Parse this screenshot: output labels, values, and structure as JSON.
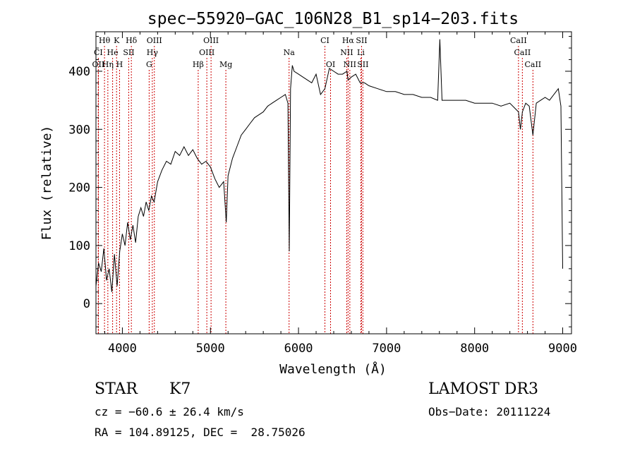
{
  "chart_data": {
    "type": "line",
    "title": "spec−55920−GAC_106N28_B1_sp14−203.fits",
    "xlabel": "Wavelength (Å)",
    "ylabel": "Flux (relative)",
    "xlim": [
      3700,
      9100
    ],
    "ylim": [
      -52,
      468
    ],
    "xticks": [
      "4000",
      "5000",
      "6000",
      "7000",
      "8000",
      "9000"
    ],
    "xtick_values": [
      4000,
      5000,
      6000,
      7000,
      8000,
      9000
    ],
    "yticks": [
      "0",
      "100",
      "200",
      "300",
      "400"
    ],
    "ytick_values": [
      0,
      100,
      200,
      300,
      400
    ],
    "grid": false,
    "series": [
      {
        "x": [
          3700,
          3730,
          3760,
          3790,
          3820,
          3850,
          3880,
          3910,
          3940,
          3970,
          4000,
          4030,
          4060,
          4090,
          4120,
          4150,
          4180,
          4210,
          4240,
          4270,
          4300,
          4330,
          4360,
          4400,
          4450,
          4500,
          4550,
          4600,
          4650,
          4700,
          4750,
          4800,
          4850,
          4900,
          4950,
          5000,
          5050,
          5100,
          5150,
          5180,
          5200,
          5250,
          5300,
          5350,
          5400,
          5450,
          5500,
          5550,
          5600,
          5650,
          5700,
          5750,
          5800,
          5850,
          5880,
          5895,
          5910,
          5930,
          5950,
          6000,
          6050,
          6100,
          6150,
          6200,
          6250,
          6300,
          6350,
          6400,
          6450,
          6500,
          6550,
          6563,
          6600,
          6650,
          6700,
          6750,
          6800,
          6900,
          7000,
          7100,
          7200,
          7300,
          7400,
          7500,
          7580,
          7605,
          7630,
          7700,
          7800,
          7900,
          8000,
          8100,
          8200,
          8300,
          8400,
          8498,
          8520,
          8542,
          8580,
          8620,
          8662,
          8700,
          8750,
          8800,
          8850,
          8900,
          8950,
          8980,
          9000
        ],
        "y": [
          30,
          70,
          55,
          95,
          40,
          60,
          20,
          85,
          30,
          90,
          120,
          100,
          140,
          110,
          135,
          105,
          150,
          165,
          150,
          175,
          160,
          185,
          175,
          210,
          230,
          245,
          240,
          262,
          255,
          270,
          255,
          265,
          250,
          240,
          245,
          235,
          215,
          200,
          210,
          140,
          220,
          250,
          270,
          290,
          300,
          310,
          320,
          325,
          330,
          340,
          345,
          350,
          355,
          360,
          345,
          90,
          370,
          410,
          400,
          395,
          390,
          385,
          380,
          395,
          360,
          370,
          405,
          400,
          395,
          395,
          400,
          385,
          390,
          395,
          380,
          380,
          375,
          370,
          365,
          365,
          360,
          360,
          355,
          355,
          350,
          455,
          350,
          350,
          350,
          350,
          345,
          345,
          345,
          340,
          345,
          330,
          300,
          330,
          345,
          340,
          290,
          345,
          350,
          355,
          350,
          360,
          370,
          340,
          60
        ]
      }
    ],
    "lines": [
      {
        "label": "Hθ",
        "x": 3797,
        "row": 0
      },
      {
        "label": "K",
        "x": 3934,
        "row": 0
      },
      {
        "label": "Hδ",
        "x": 4102,
        "row": 0
      },
      {
        "label": "OIII",
        "x": 4363,
        "row": 0
      },
      {
        "label": "OIII",
        "x": 5007,
        "row": 0
      },
      {
        "label": "CI",
        "x": 6300,
        "row": 0
      },
      {
        "label": "Hα",
        "x": 6563,
        "row": 0
      },
      {
        "label": "SII",
        "x": 6716,
        "row": 0
      },
      {
        "label": "CaII",
        "x": 8498,
        "row": 0
      },
      {
        "label": "CI",
        "x": 3727,
        "row": 1
      },
      {
        "label": "He",
        "x": 3889,
        "row": 1
      },
      {
        "label": "SII",
        "x": 4072,
        "row": 1
      },
      {
        "label": "Hγ",
        "x": 4340,
        "row": 1
      },
      {
        "label": "OIII",
        "x": 4959,
        "row": 1
      },
      {
        "label": "Na",
        "x": 5893,
        "row": 1
      },
      {
        "label": "NII",
        "x": 6548,
        "row": 1
      },
      {
        "label": "Li",
        "x": 6708,
        "row": 1
      },
      {
        "label": "CaII",
        "x": 8542,
        "row": 1
      },
      {
        "label": "OII",
        "x": 3727,
        "row": 2
      },
      {
        "label": "Hη",
        "x": 3835,
        "row": 2
      },
      {
        "label": "H",
        "x": 3968,
        "row": 2
      },
      {
        "label": "G",
        "x": 4304,
        "row": 2
      },
      {
        "label": "Hβ",
        "x": 4861,
        "row": 2
      },
      {
        "label": "Mg",
        "x": 5175,
        "row": 2
      },
      {
        "label": "OI",
        "x": 6364,
        "row": 2
      },
      {
        "label": "NII",
        "x": 6583,
        "row": 2
      },
      {
        "label": "SII",
        "x": 6731,
        "row": 2
      },
      {
        "label": "CaII",
        "x": 8662,
        "row": 2
      }
    ]
  },
  "info": {
    "object_type": "STAR",
    "subclass": "K7",
    "survey": "LAMOST DR3",
    "cz": "cz = −60.6 ± 26.4 km/s",
    "obs_date": "Obs−Date: 20111224",
    "coords": "RA = 104.89125, DEC =  28.75026"
  },
  "colors": {
    "spectrum": "#000000",
    "line_markers": "#cc0000"
  }
}
